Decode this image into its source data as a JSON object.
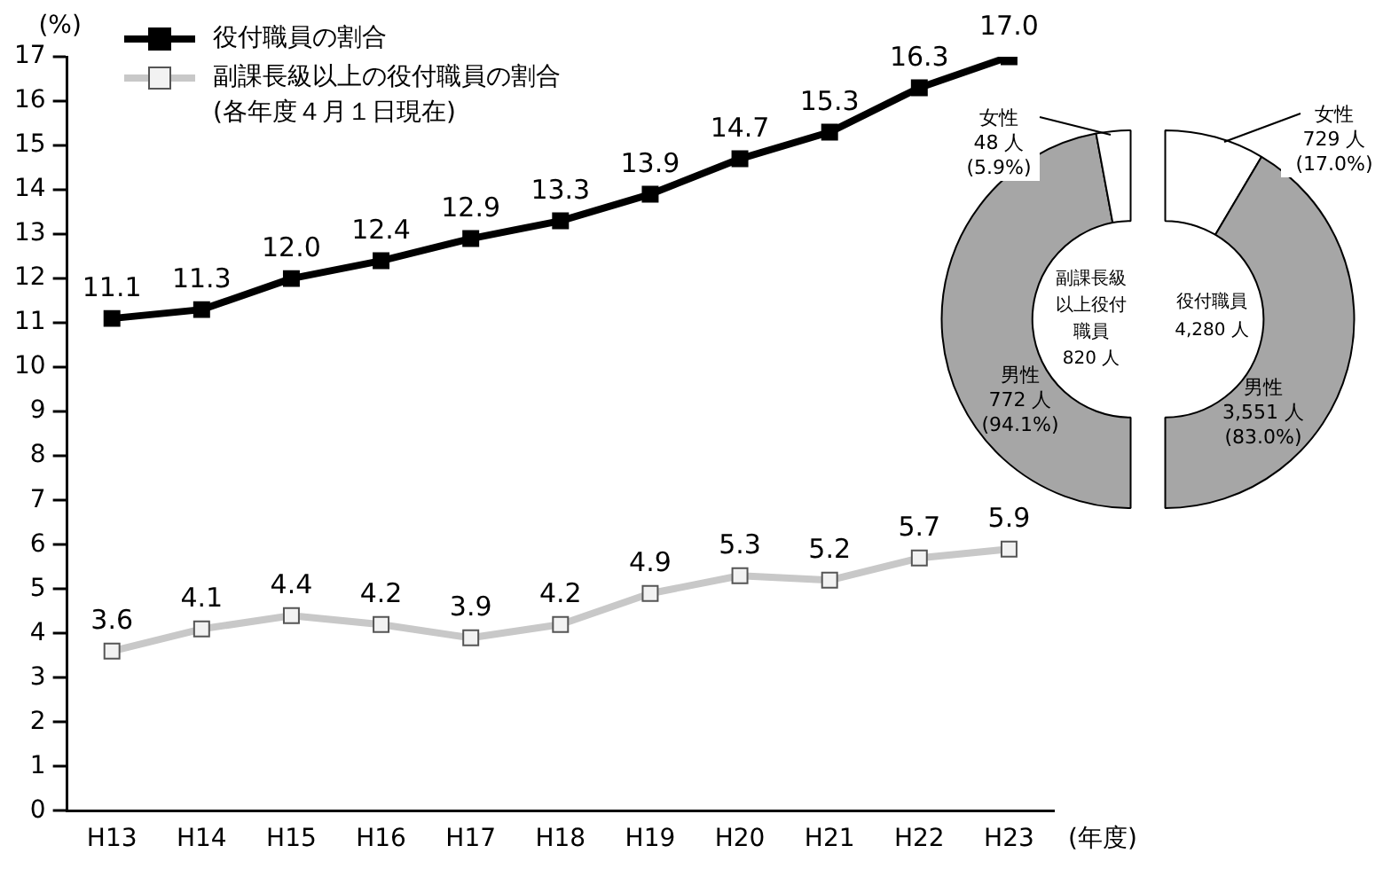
{
  "chart_data": [
    {
      "type": "line",
      "ylabel": "(%)",
      "xlabel": "(年度)",
      "categories": [
        "H13",
        "H14",
        "H15",
        "H16",
        "H17",
        "H18",
        "H19",
        "H20",
        "H21",
        "H22",
        "H23"
      ],
      "ylim": [
        0,
        17
      ],
      "yticks": [
        0,
        1,
        2,
        3,
        4,
        5,
        6,
        7,
        8,
        9,
        10,
        11,
        12,
        13,
        14,
        15,
        16,
        17
      ],
      "grid": false,
      "legend": "top left",
      "annotations": [
        "(各年度４月１日現在)"
      ],
      "series": [
        {
          "name": "役付職員の割合",
          "color": "#000000",
          "marker": "square",
          "values": [
            11.1,
            11.3,
            12.0,
            12.4,
            12.9,
            13.3,
            13.9,
            14.7,
            15.3,
            16.3,
            17.0
          ],
          "value_labels": [
            "11.1",
            "11.3",
            "12.0",
            "12.4",
            "12.9",
            "13.3",
            "13.9",
            "14.7",
            "15.3",
            "16.3",
            "17.0"
          ]
        },
        {
          "name": "副課長級以上の役付職員の割合",
          "color": "#c8c8c8",
          "marker": "square",
          "values": [
            3.6,
            4.1,
            4.4,
            4.2,
            3.9,
            4.2,
            4.9,
            5.3,
            5.2,
            5.7,
            5.9
          ],
          "value_labels": [
            "3.6",
            "4.1",
            "4.4",
            "4.2",
            "3.9",
            "4.2",
            "4.9",
            "5.3",
            "5.2",
            "5.7",
            "5.9"
          ]
        }
      ]
    },
    {
      "type": "donut",
      "title": "副課長級以上役付職員\n820 人",
      "categories": [
        "男性",
        "女性"
      ],
      "values": [
        772,
        48
      ],
      "colors": [
        "#a6a6a6",
        "#ffffff"
      ],
      "value_labels": [
        "772 人\n(94.1%)",
        "48 人\n(5.9%)"
      ]
    },
    {
      "type": "donut",
      "title": "役付職員\n4,280 人",
      "categories": [
        "女性",
        "男性"
      ],
      "values": [
        729,
        3551
      ],
      "colors": [
        "#ffffff",
        "#a6a6a6"
      ],
      "value_labels": [
        "729 人\n(17.0%)",
        "3,551 人\n(83.0%)"
      ]
    }
  ]
}
